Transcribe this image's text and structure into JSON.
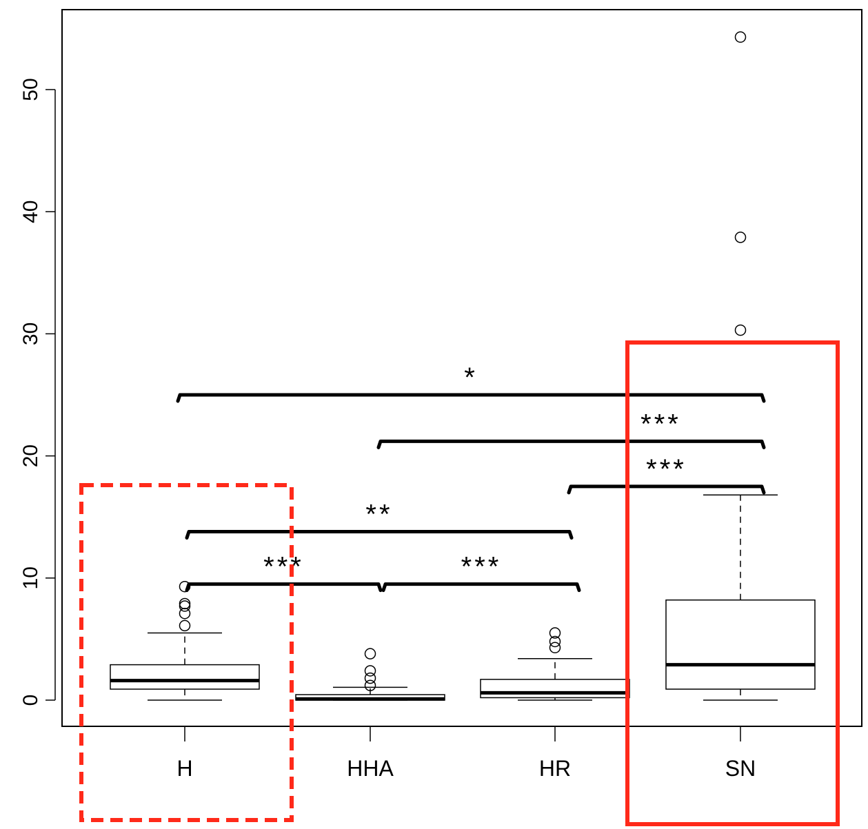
{
  "chart_data": {
    "type": "box",
    "title": "",
    "xlabel": "",
    "ylabel": "",
    "ylim": [
      -2.1,
      56.5
    ],
    "yticks": [
      0,
      10,
      20,
      30,
      40,
      50
    ],
    "ytick_labels": [
      "0",
      "10",
      "20",
      "30",
      "40",
      "50"
    ],
    "grid": false,
    "categories": [
      "H",
      "HHA",
      "HR",
      "SN"
    ],
    "boxes": [
      {
        "category": "H",
        "q1": 0.9,
        "median": 1.6,
        "q3": 2.9,
        "whisker_low": 0.0,
        "whisker_high": 5.5,
        "outliers": [
          6.1,
          7.1,
          7.7,
          7.9,
          9.3
        ]
      },
      {
        "category": "HHA",
        "q1": 0.0,
        "median": 0.1,
        "q3": 0.45,
        "whisker_low": 0.0,
        "whisker_high": 1.05,
        "outliers": [
          1.2,
          1.8,
          2.4,
          3.8
        ]
      },
      {
        "category": "HR",
        "q1": 0.2,
        "median": 0.6,
        "q3": 1.7,
        "whisker_low": 0.0,
        "whisker_high": 3.4,
        "outliers": [
          4.3,
          4.8,
          5.5
        ]
      },
      {
        "category": "SN",
        "q1": 0.9,
        "median": 2.9,
        "q3": 8.2,
        "whisker_low": 0.0,
        "whisker_high": 16.8,
        "outliers": [
          30.3,
          37.9,
          54.3
        ]
      }
    ],
    "significance": [
      {
        "from": "H",
        "to": "SN",
        "level": 25.0,
        "label": "*"
      },
      {
        "from": "HHA",
        "to": "SN",
        "level": 21.2,
        "label": "***"
      },
      {
        "from": "HR",
        "to": "SN",
        "level": 17.5,
        "label": "***"
      },
      {
        "from": "H",
        "to": "HR",
        "level": 13.8,
        "label": "**"
      },
      {
        "from": "H",
        "to": "HHA",
        "level": 9.5,
        "label": "***"
      },
      {
        "from": "HHA",
        "to": "HR",
        "level": 9.5,
        "label": "***"
      }
    ],
    "highlights": [
      {
        "category": "H",
        "style": "dashed",
        "color": "#ff2a1a"
      },
      {
        "category": "SN",
        "style": "solid",
        "color": "#ff2a1a"
      }
    ]
  }
}
